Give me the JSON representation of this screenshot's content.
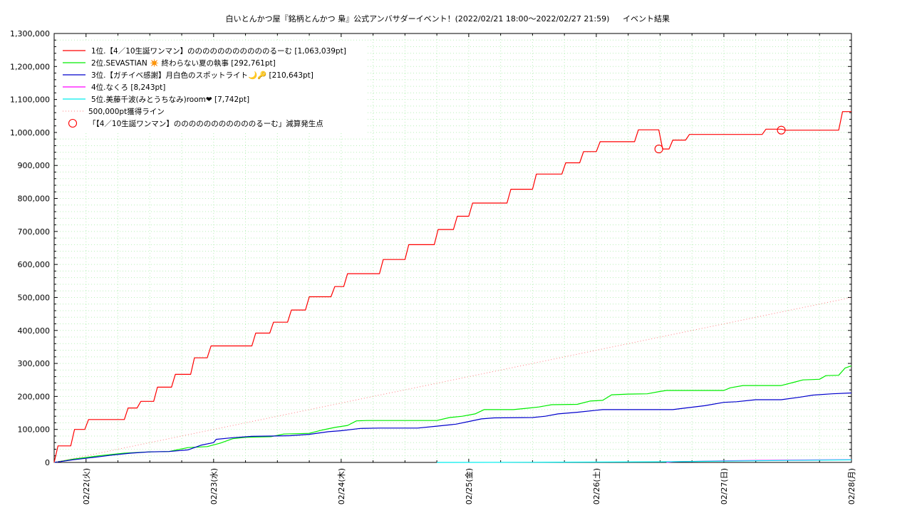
{
  "chart_data": {
    "type": "line",
    "title": "白いとんかつ屋『銘柄とんかつ 梟』公式アンバサダーイベント！(2022/02/21 18:00〜2022/02/27 21:59)",
    "subtitle": "イベント結果",
    "xlabel": "",
    "ylabel": "",
    "x_ticks": [
      "02/22(火)",
      "02/23(水)",
      "02/24(木)",
      "02/25(金)",
      "02/26(土)",
      "02/27(日)",
      "02/28(月)"
    ],
    "xlim_days": [
      -0.25,
      6.0
    ],
    "ylim": [
      0,
      1300000
    ],
    "y_ticks": [
      "0",
      "100,000",
      "200,000",
      "300,000",
      "400,000",
      "500,000",
      "600,000",
      "700,000",
      "800,000",
      "900,000",
      "1,000,000",
      "1,100,000",
      "1,200,000",
      "1,300,000"
    ],
    "y_tick_values": [
      0,
      100000,
      200000,
      300000,
      400000,
      500000,
      600000,
      700000,
      800000,
      900000,
      1000000,
      1100000,
      1200000,
      1300000
    ],
    "grid": true,
    "legend_position": "top-left",
    "series": [
      {
        "name": "1位.【4／10生誕ワンマン】のののののののののののるーむ [1,063,039pt]",
        "color": "#ff0000",
        "style": "step",
        "points": [
          [
            -0.25,
            0
          ],
          [
            -0.22,
            50000
          ],
          [
            -0.12,
            50000
          ],
          [
            -0.09,
            100000
          ],
          [
            -0.01,
            100000
          ],
          [
            0.02,
            130000
          ],
          [
            0.3,
            130000
          ],
          [
            0.33,
            165000
          ],
          [
            0.4,
            165000
          ],
          [
            0.43,
            185000
          ],
          [
            0.53,
            185000
          ],
          [
            0.56,
            228000
          ],
          [
            0.67,
            228000
          ],
          [
            0.7,
            267000
          ],
          [
            0.82,
            267000
          ],
          [
            0.85,
            317000
          ],
          [
            0.95,
            317000
          ],
          [
            0.98,
            353000
          ],
          [
            1.3,
            353000
          ],
          [
            1.33,
            392000
          ],
          [
            1.44,
            392000
          ],
          [
            1.47,
            425000
          ],
          [
            1.58,
            425000
          ],
          [
            1.61,
            462000
          ],
          [
            1.72,
            462000
          ],
          [
            1.75,
            502000
          ],
          [
            1.92,
            502000
          ],
          [
            1.95,
            533000
          ],
          [
            2.02,
            533000
          ],
          [
            2.05,
            572000
          ],
          [
            2.3,
            572000
          ],
          [
            2.33,
            615000
          ],
          [
            2.5,
            615000
          ],
          [
            2.53,
            660000
          ],
          [
            2.73,
            660000
          ],
          [
            2.76,
            706000
          ],
          [
            2.88,
            706000
          ],
          [
            2.91,
            746000
          ],
          [
            3.0,
            746000
          ],
          [
            3.03,
            786000
          ],
          [
            3.3,
            786000
          ],
          [
            3.33,
            828000
          ],
          [
            3.5,
            828000
          ],
          [
            3.53,
            874000
          ],
          [
            3.73,
            874000
          ],
          [
            3.76,
            908000
          ],
          [
            3.87,
            908000
          ],
          [
            3.9,
            942000
          ],
          [
            4.0,
            942000
          ],
          [
            4.03,
            972000
          ],
          [
            4.3,
            972000
          ],
          [
            4.33,
            1008000
          ],
          [
            4.49,
            1008000
          ],
          [
            4.52,
            950000
          ],
          [
            4.57,
            950000
          ],
          [
            4.6,
            977000
          ],
          [
            4.7,
            977000
          ],
          [
            4.73,
            994000
          ],
          [
            5.3,
            994000
          ],
          [
            5.33,
            1010000
          ],
          [
            5.45,
            1010000
          ],
          [
            5.48,
            1007000
          ],
          [
            5.9,
            1007000
          ],
          [
            5.93,
            1063039
          ],
          [
            6.0,
            1063039
          ]
        ]
      },
      {
        "name": "2位.SEVASTIAN ✴️ 終わらない夏の執事 [292,761pt]",
        "color": "#00ee00",
        "style": "line",
        "points": [
          [
            -0.25,
            0
          ],
          [
            -0.1,
            10000
          ],
          [
            0.1,
            20000
          ],
          [
            0.3,
            28000
          ],
          [
            0.5,
            32000
          ],
          [
            0.65,
            33000
          ],
          [
            0.8,
            45000
          ],
          [
            0.95,
            48000
          ],
          [
            1.05,
            58000
          ],
          [
            1.15,
            72000
          ],
          [
            1.25,
            76000
          ],
          [
            1.45,
            78000
          ],
          [
            1.55,
            86000
          ],
          [
            1.75,
            88000
          ],
          [
            1.85,
            98000
          ],
          [
            1.95,
            106000
          ],
          [
            2.05,
            112000
          ],
          [
            2.12,
            126000
          ],
          [
            2.2,
            127000
          ],
          [
            2.75,
            127000
          ],
          [
            2.85,
            136000
          ],
          [
            2.95,
            140000
          ],
          [
            3.05,
            147000
          ],
          [
            3.12,
            160000
          ],
          [
            3.35,
            160000
          ],
          [
            3.45,
            164000
          ],
          [
            3.55,
            168000
          ],
          [
            3.65,
            175000
          ],
          [
            3.85,
            176000
          ],
          [
            3.95,
            186000
          ],
          [
            4.05,
            188000
          ],
          [
            4.12,
            205000
          ],
          [
            4.25,
            207000
          ],
          [
            4.4,
            208000
          ],
          [
            4.5,
            215000
          ],
          [
            4.55,
            218000
          ],
          [
            5.0,
            218000
          ],
          [
            5.05,
            226000
          ],
          [
            5.15,
            233000
          ],
          [
            5.45,
            233000
          ],
          [
            5.55,
            243000
          ],
          [
            5.62,
            250000
          ],
          [
            5.75,
            252000
          ],
          [
            5.8,
            263000
          ],
          [
            5.9,
            264000
          ],
          [
            5.95,
            286000
          ],
          [
            6.0,
            292761
          ]
        ]
      },
      {
        "name": "3位.【ガチイベ感謝】月白色のスポットライト🌙🔑 [210,643pt]",
        "color": "#0000cc",
        "style": "line",
        "points": [
          [
            -0.25,
            0
          ],
          [
            -0.1,
            8000
          ],
          [
            0.05,
            15000
          ],
          [
            0.2,
            22000
          ],
          [
            0.35,
            28000
          ],
          [
            0.5,
            32000
          ],
          [
            0.65,
            33000
          ],
          [
            0.8,
            38000
          ],
          [
            0.9,
            52000
          ],
          [
            1.0,
            60000
          ],
          [
            1.02,
            70000
          ],
          [
            1.15,
            75000
          ],
          [
            1.3,
            79000
          ],
          [
            1.45,
            80000
          ],
          [
            1.6,
            81000
          ],
          [
            1.75,
            85000
          ],
          [
            1.9,
            93000
          ],
          [
            2.0,
            96000
          ],
          [
            2.15,
            103000
          ],
          [
            2.3,
            104000
          ],
          [
            2.6,
            104000
          ],
          [
            2.75,
            110000
          ],
          [
            2.9,
            116000
          ],
          [
            3.0,
            124000
          ],
          [
            3.1,
            132000
          ],
          [
            3.2,
            135000
          ],
          [
            3.5,
            136000
          ],
          [
            3.6,
            140000
          ],
          [
            3.7,
            147000
          ],
          [
            3.85,
            152000
          ],
          [
            4.0,
            158000
          ],
          [
            4.05,
            160000
          ],
          [
            4.6,
            160000
          ],
          [
            4.7,
            165000
          ],
          [
            4.85,
            172000
          ],
          [
            5.0,
            182000
          ],
          [
            5.1,
            184000
          ],
          [
            5.25,
            190000
          ],
          [
            5.45,
            190000
          ],
          [
            5.6,
            198000
          ],
          [
            5.7,
            204000
          ],
          [
            5.85,
            208000
          ],
          [
            6.0,
            210643
          ]
        ]
      },
      {
        "name": "4位.なくろ [8,243pt]",
        "color": "#ff00ff",
        "style": "line",
        "points": [
          [
            4.55,
            0
          ],
          [
            4.6,
            2000
          ],
          [
            5.0,
            5000
          ],
          [
            5.45,
            7000
          ],
          [
            6.0,
            8243
          ]
        ]
      },
      {
        "name": "5位.美藤千波(みとうちなみ)room❤ [7,742pt]",
        "color": "#00eeee",
        "style": "line",
        "points": [
          [
            2.75,
            0
          ],
          [
            3.5,
            500
          ],
          [
            4.5,
            2000
          ],
          [
            5.0,
            4000
          ],
          [
            5.5,
            6000
          ],
          [
            6.0,
            7742
          ]
        ]
      },
      {
        "name": "500,000pt獲得ライン",
        "color": "#ff8080",
        "style": "dotted",
        "points": [
          [
            -0.25,
            0
          ],
          [
            6.0,
            500000
          ]
        ]
      }
    ],
    "markers": {
      "name": "「【4／10生誕ワンマン】のののののののののののるーむ」減算発生点",
      "color": "#ff0000",
      "symbol": "circle",
      "points": [
        [
          4.49,
          950000
        ],
        [
          5.45,
          1007000
        ]
      ]
    }
  }
}
